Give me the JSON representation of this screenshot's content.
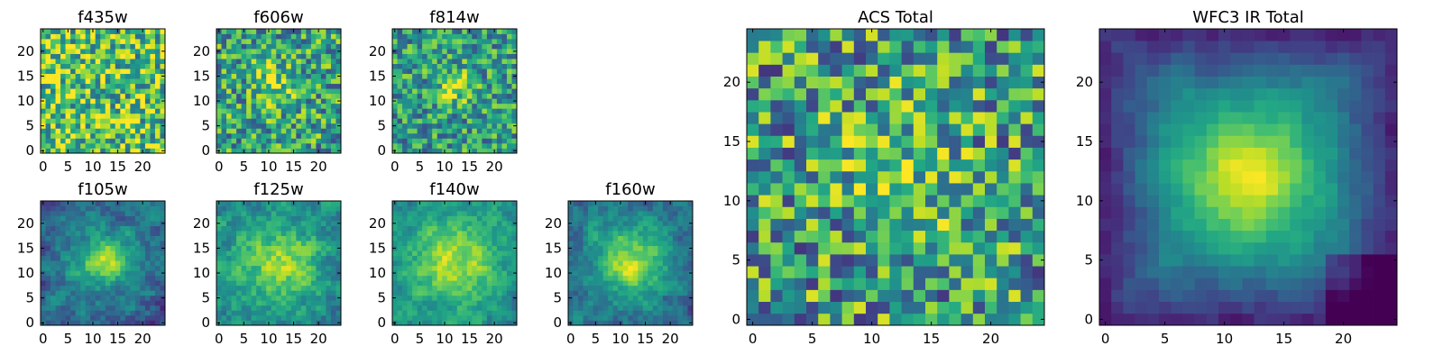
{
  "chart_data": [
    {
      "type": "heatmap",
      "title": "f435w",
      "x_ticks": [
        "0",
        "5",
        "10",
        "15",
        "20"
      ],
      "y_ticks": [
        "0",
        "5",
        "10",
        "15",
        "20"
      ],
      "xlim": [
        -0.5,
        24.5
      ],
      "ylim": [
        -0.5,
        24.5
      ],
      "grid_size": 25,
      "colormap": "viridis",
      "peak": null,
      "xlabel": "",
      "ylabel": ""
    },
    {
      "type": "heatmap",
      "title": "f606w",
      "x_ticks": [
        "0",
        "5",
        "10",
        "15",
        "20"
      ],
      "y_ticks": [
        "0",
        "5",
        "10",
        "15",
        "20"
      ],
      "xlim": [
        -0.5,
        24.5
      ],
      "ylim": [
        -0.5,
        24.5
      ],
      "grid_size": 25,
      "colormap": "viridis",
      "peak": [
        11,
        13
      ],
      "xlabel": "",
      "ylabel": ""
    },
    {
      "type": "heatmap",
      "title": "f814w",
      "x_ticks": [
        "0",
        "5",
        "10",
        "15",
        "20"
      ],
      "y_ticks": [
        "0",
        "5",
        "10",
        "15",
        "20"
      ],
      "xlim": [
        -0.5,
        24.5
      ],
      "ylim": [
        -0.5,
        24.5
      ],
      "grid_size": 25,
      "colormap": "viridis",
      "peak": [
        12,
        13
      ],
      "xlabel": "",
      "ylabel": ""
    },
    {
      "type": "heatmap",
      "title": "f105w",
      "x_ticks": [
        "0",
        "5",
        "10",
        "15",
        "20"
      ],
      "y_ticks": [
        "0",
        "5",
        "10",
        "15",
        "20"
      ],
      "xlim": [
        -0.5,
        24.5
      ],
      "ylim": [
        -0.5,
        24.5
      ],
      "grid_size": 25,
      "colormap": "viridis",
      "peak": [
        12,
        12
      ],
      "xlabel": "",
      "ylabel": ""
    },
    {
      "type": "heatmap",
      "title": "f125w",
      "x_ticks": [
        "0",
        "5",
        "10",
        "15",
        "20"
      ],
      "y_ticks": [
        "0",
        "5",
        "10",
        "15",
        "20"
      ],
      "xlim": [
        -0.5,
        24.5
      ],
      "ylim": [
        -0.5,
        24.5
      ],
      "grid_size": 25,
      "colormap": "viridis",
      "peak": [
        12,
        12
      ],
      "xlabel": "",
      "ylabel": ""
    },
    {
      "type": "heatmap",
      "title": "f140w",
      "x_ticks": [
        "0",
        "5",
        "10",
        "15",
        "20"
      ],
      "y_ticks": [
        "0",
        "5",
        "10",
        "15",
        "20"
      ],
      "xlim": [
        -0.5,
        24.5
      ],
      "ylim": [
        -0.5,
        24.5
      ],
      "grid_size": 25,
      "colormap": "viridis",
      "peak": [
        12,
        12
      ],
      "xlabel": "",
      "ylabel": ""
    },
    {
      "type": "heatmap",
      "title": "f160w",
      "x_ticks": [
        "0",
        "5",
        "10",
        "15",
        "20"
      ],
      "y_ticks": [
        "0",
        "5",
        "10",
        "15",
        "20"
      ],
      "xlim": [
        -0.5,
        24.5
      ],
      "ylim": [
        -0.5,
        24.5
      ],
      "grid_size": 25,
      "colormap": "viridis",
      "peak": [
        12,
        12
      ],
      "xlabel": "",
      "ylabel": ""
    },
    {
      "type": "heatmap",
      "title": "ACS Total",
      "x_ticks": [
        "0",
        "5",
        "10",
        "15",
        "20"
      ],
      "y_ticks": [
        "0",
        "5",
        "10",
        "15",
        "20"
      ],
      "xlim": [
        -0.5,
        24.5
      ],
      "ylim": [
        -0.5,
        24.5
      ],
      "grid_size": 25,
      "colormap": "viridis",
      "peak": [
        12,
        13
      ],
      "xlabel": "",
      "ylabel": ""
    },
    {
      "type": "heatmap",
      "title": "WFC3 IR Total",
      "x_ticks": [
        "0",
        "5",
        "10",
        "15",
        "20"
      ],
      "y_ticks": [
        "0",
        "5",
        "10",
        "15",
        "20"
      ],
      "xlim": [
        -0.5,
        24.5
      ],
      "ylim": [
        -0.5,
        24.5
      ],
      "grid_size": 25,
      "colormap": "viridis",
      "peak": [
        12,
        12
      ],
      "xlabel": "",
      "ylabel": ""
    }
  ]
}
